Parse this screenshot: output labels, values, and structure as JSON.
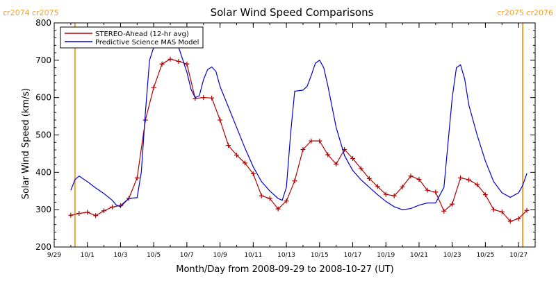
{
  "chart_data": {
    "type": "line",
    "title": "Solar Wind Speed Comparisons",
    "xlabel": "Month/Day from 2008-09-29 to 2008-10-27 (UT)",
    "ylabel": "Solar Wind Speed (km/s)",
    "xlim": [
      "2008-09-29",
      "2008-10-28"
    ],
    "ylim": [
      200,
      800
    ],
    "yticks": [
      200,
      300,
      400,
      500,
      600,
      700,
      800
    ],
    "xticks": [
      {
        "date": "2008-09-29",
        "label": "9/29"
      },
      {
        "date": "2008-10-01",
        "label": "10/1"
      },
      {
        "date": "2008-10-03",
        "label": "10/3"
      },
      {
        "date": "2008-10-05",
        "label": "10/5"
      },
      {
        "date": "2008-10-07",
        "label": "10/7"
      },
      {
        "date": "2008-10-09",
        "label": "10/9"
      },
      {
        "date": "2008-10-11",
        "label": "10/11"
      },
      {
        "date": "2008-10-13",
        "label": "10/13"
      },
      {
        "date": "2008-10-15",
        "label": "10/15"
      },
      {
        "date": "2008-10-17",
        "label": "10/17"
      },
      {
        "date": "2008-10-19",
        "label": "10/19"
      },
      {
        "date": "2008-10-21",
        "label": "10/21"
      },
      {
        "date": "2008-10-23",
        "label": "10/23"
      },
      {
        "date": "2008-10-25",
        "label": "10/25"
      },
      {
        "date": "2008-10-27",
        "label": "10/27"
      }
    ],
    "legend_position": "top-left",
    "carrington_markers": [
      {
        "date": "2008-09-30 06:00",
        "label": "cr2074 cr2075",
        "color": "#f0a030"
      },
      {
        "date": "2008-10-27 06:00",
        "label": "cr2075 cr2076",
        "color": "#f0a030"
      }
    ],
    "series": [
      {
        "name": "STEREO-Ahead (12-hr avg)",
        "color": "#b00000",
        "marker": "plus",
        "points": [
          [
            "2008-09-30 00:00",
            285
          ],
          [
            "2008-09-30 12:00",
            290
          ],
          [
            "2008-10-01 00:00",
            293
          ],
          [
            "2008-10-01 12:00",
            284
          ],
          [
            "2008-10-02 00:00",
            297
          ],
          [
            "2008-10-02 12:00",
            307
          ],
          [
            "2008-10-03 00:00",
            311
          ],
          [
            "2008-10-03 12:00",
            330
          ],
          [
            "2008-10-04 00:00",
            385
          ],
          [
            "2008-10-04 12:00",
            540
          ],
          [
            "2008-10-05 00:00",
            627
          ],
          [
            "2008-10-05 12:00",
            690
          ],
          [
            "2008-10-06 00:00",
            703
          ],
          [
            "2008-10-06 12:00",
            697
          ],
          [
            "2008-10-07 00:00",
            690
          ],
          [
            "2008-10-07 12:00",
            598
          ],
          [
            "2008-10-08 00:00",
            600
          ],
          [
            "2008-10-08 12:00",
            599
          ],
          [
            "2008-10-09 00:00",
            540
          ],
          [
            "2008-10-09 12:00",
            472
          ],
          [
            "2008-10-10 00:00",
            446
          ],
          [
            "2008-10-10 12:00",
            425
          ],
          [
            "2008-10-11 00:00",
            396
          ],
          [
            "2008-10-11 12:00",
            337
          ],
          [
            "2008-10-12 00:00",
            330
          ],
          [
            "2008-10-12 12:00",
            302
          ],
          [
            "2008-10-13 00:00",
            323
          ],
          [
            "2008-10-13 12:00",
            377
          ],
          [
            "2008-10-14 00:00",
            461
          ],
          [
            "2008-10-14 12:00",
            484
          ],
          [
            "2008-10-15 00:00",
            484
          ],
          [
            "2008-10-15 12:00",
            447
          ],
          [
            "2008-10-16 00:00",
            422
          ],
          [
            "2008-10-16 12:00",
            461
          ],
          [
            "2008-10-17 00:00",
            437
          ],
          [
            "2008-10-17 12:00",
            410
          ],
          [
            "2008-10-18 00:00",
            383
          ],
          [
            "2008-10-18 12:00",
            362
          ],
          [
            "2008-10-19 00:00",
            341
          ],
          [
            "2008-10-19 12:00",
            337
          ],
          [
            "2008-10-20 00:00",
            361
          ],
          [
            "2008-10-20 12:00",
            390
          ],
          [
            "2008-10-21 00:00",
            381
          ],
          [
            "2008-10-21 12:00",
            352
          ],
          [
            "2008-10-22 00:00",
            347
          ],
          [
            "2008-10-22 12:00",
            296
          ],
          [
            "2008-10-23 00:00",
            315
          ],
          [
            "2008-10-23 12:00",
            385
          ],
          [
            "2008-10-24 00:00",
            380
          ],
          [
            "2008-10-24 12:00",
            367
          ],
          [
            "2008-10-25 00:00",
            340
          ],
          [
            "2008-10-25 12:00",
            300
          ],
          [
            "2008-10-26 00:00",
            294
          ],
          [
            "2008-10-26 12:00",
            269
          ],
          [
            "2008-10-27 00:00",
            276
          ],
          [
            "2008-10-27 12:00",
            298
          ]
        ]
      },
      {
        "name": "Predictive Science MAS Model",
        "color": "#0000cc",
        "marker": "none",
        "points": [
          [
            "2008-09-30 00:00",
            352
          ],
          [
            "2008-09-30 06:00",
            380
          ],
          [
            "2008-09-30 12:00",
            390
          ],
          [
            "2008-10-01 00:00",
            375
          ],
          [
            "2008-10-01 12:00",
            358
          ],
          [
            "2008-10-02 00:00",
            343
          ],
          [
            "2008-10-02 12:00",
            325
          ],
          [
            "2008-10-02 18:00",
            312
          ],
          [
            "2008-10-03 00:00",
            308
          ],
          [
            "2008-10-03 12:00",
            330
          ],
          [
            "2008-10-04 00:00",
            332
          ],
          [
            "2008-10-04 06:00",
            400
          ],
          [
            "2008-10-04 12:00",
            560
          ],
          [
            "2008-10-04 18:00",
            700
          ],
          [
            "2008-10-05 00:00",
            735
          ],
          [
            "2008-10-05 12:00",
            742
          ],
          [
            "2008-10-06 00:00",
            748
          ],
          [
            "2008-10-06 12:00",
            735
          ],
          [
            "2008-10-07 00:00",
            668
          ],
          [
            "2008-10-07 06:00",
            622
          ],
          [
            "2008-10-07 12:00",
            600
          ],
          [
            "2008-10-07 18:00",
            605
          ],
          [
            "2008-10-08 00:00",
            648
          ],
          [
            "2008-10-08 06:00",
            675
          ],
          [
            "2008-10-08 12:00",
            682
          ],
          [
            "2008-10-08 18:00",
            670
          ],
          [
            "2008-10-09 00:00",
            630
          ],
          [
            "2008-10-09 12:00",
            575
          ],
          [
            "2008-10-10 00:00",
            520
          ],
          [
            "2008-10-10 12:00",
            465
          ],
          [
            "2008-10-11 00:00",
            415
          ],
          [
            "2008-10-11 12:00",
            375
          ],
          [
            "2008-10-12 00:00",
            350
          ],
          [
            "2008-10-12 12:00",
            330
          ],
          [
            "2008-10-12 18:00",
            325
          ],
          [
            "2008-10-13 00:00",
            360
          ],
          [
            "2008-10-13 06:00",
            500
          ],
          [
            "2008-10-13 12:00",
            617
          ],
          [
            "2008-10-14 00:00",
            620
          ],
          [
            "2008-10-14 06:00",
            630
          ],
          [
            "2008-10-14 12:00",
            660
          ],
          [
            "2008-10-14 18:00",
            692
          ],
          [
            "2008-10-15 00:00",
            700
          ],
          [
            "2008-10-15 06:00",
            680
          ],
          [
            "2008-10-15 12:00",
            632
          ],
          [
            "2008-10-16 00:00",
            520
          ],
          [
            "2008-10-16 12:00",
            445
          ],
          [
            "2008-10-17 00:00",
            405
          ],
          [
            "2008-10-17 12:00",
            380
          ],
          [
            "2008-10-18 00:00",
            360
          ],
          [
            "2008-10-18 12:00",
            340
          ],
          [
            "2008-10-19 00:00",
            322
          ],
          [
            "2008-10-19 12:00",
            308
          ],
          [
            "2008-10-20 00:00",
            300
          ],
          [
            "2008-10-20 12:00",
            303
          ],
          [
            "2008-10-21 00:00",
            312
          ],
          [
            "2008-10-21 12:00",
            318
          ],
          [
            "2008-10-22 00:00",
            318
          ],
          [
            "2008-10-22 12:00",
            360
          ],
          [
            "2008-10-22 18:00",
            480
          ],
          [
            "2008-10-23 00:00",
            600
          ],
          [
            "2008-10-23 06:00",
            680
          ],
          [
            "2008-10-23 12:00",
            688
          ],
          [
            "2008-10-23 18:00",
            650
          ],
          [
            "2008-10-24 00:00",
            580
          ],
          [
            "2008-10-24 12:00",
            500
          ],
          [
            "2008-10-25 00:00",
            430
          ],
          [
            "2008-10-25 12:00",
            375
          ],
          [
            "2008-10-26 00:00",
            345
          ],
          [
            "2008-10-26 12:00",
            333
          ],
          [
            "2008-10-27 00:00",
            345
          ],
          [
            "2008-10-27 06:00",
            365
          ],
          [
            "2008-10-27 12:00",
            397
          ]
        ]
      }
    ]
  }
}
